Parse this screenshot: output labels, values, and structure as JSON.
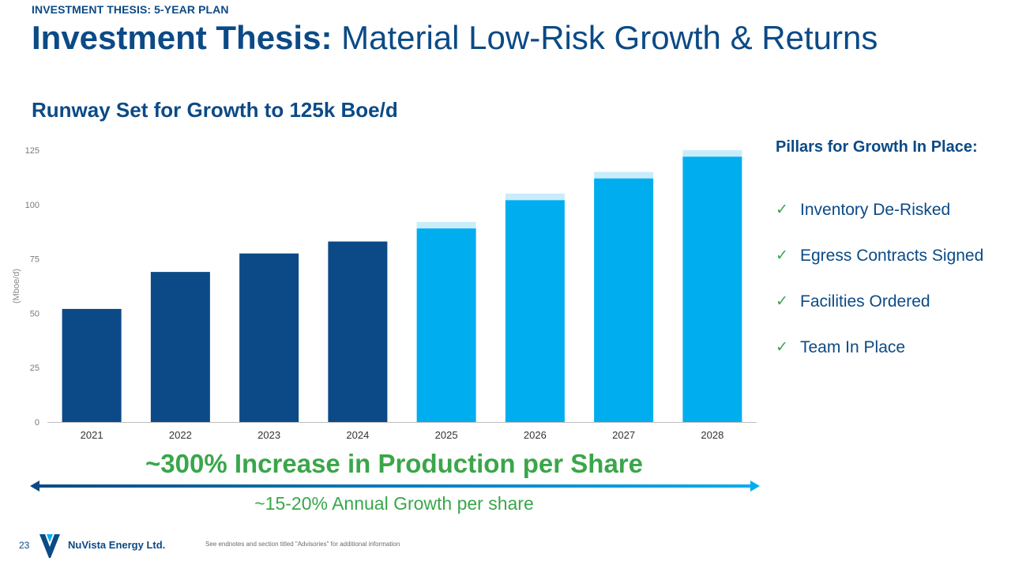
{
  "header": {
    "kicker": "INVESTMENT THESIS: 5-YEAR PLAN",
    "title_strong": "Investment Thesis:",
    "title_rest": " Material Low-Risk Growth & Returns"
  },
  "chart_data": {
    "type": "bar",
    "title": "Runway Set for Growth to 125k Boe/d",
    "ylabel": "(Mboe/d)",
    "xlabel": "",
    "ylim": [
      0,
      125
    ],
    "yticks": [
      0,
      25,
      50,
      75,
      100,
      125
    ],
    "grid": false,
    "categories": [
      "2021",
      "2022",
      "2023",
      "2024",
      "2025",
      "2026",
      "2027",
      "2028"
    ],
    "values": [
      52,
      69,
      77.5,
      83,
      92,
      105,
      115,
      125
    ],
    "range_low": [
      null,
      null,
      null,
      null,
      89,
      102,
      112,
      122
    ],
    "series_colors": {
      "actual": "#0b4a86",
      "forecast": "#00aeef",
      "range": "#c9ecfb"
    },
    "actual_count": 4
  },
  "pillars": {
    "heading": "Pillars for Growth In Place:",
    "items": [
      "Inventory De-Risked",
      "Egress Contracts Signed",
      "Facilities Ordered",
      "Team In Place"
    ]
  },
  "callout": {
    "headline": "~300% Increase in Production per Share",
    "growth": "~15-20% Annual Growth per share"
  },
  "footer": {
    "page": "23",
    "company": "NuVista Energy Ltd.",
    "note": "See endnotes and section titled \"Advisories\" for additional information"
  },
  "colors": {
    "brand": "#0b4a86",
    "accent_green": "#3aa64a",
    "light_blue": "#00aeef"
  }
}
